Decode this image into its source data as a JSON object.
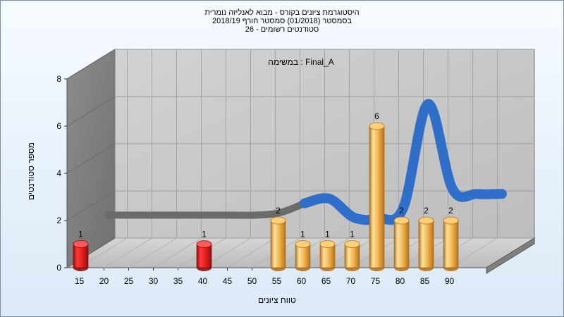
{
  "chart_data": {
    "type": "bar",
    "title_lines": [
      "היסטוגרמת ציונים בקורס - מבוא לאנליזה נומרית",
      "בסמסטר  (01/2018)  סמסטר חורף 2018/19",
      "סטודנטים רשומים - 26"
    ],
    "annotation": "במשימה : Final_A",
    "xlabel": "טווח ציונים",
    "ylabel": "מספר סטודנטים",
    "x_ticks": [
      "15",
      "20",
      "25",
      "30",
      "35",
      "40",
      "45",
      "50",
      "55",
      "60",
      "65",
      "70",
      "75",
      "80",
      "85",
      "90"
    ],
    "y_ticks": [
      "0",
      "2",
      "4",
      "6",
      "8"
    ],
    "ylim": [
      0,
      8
    ],
    "bars": [
      {
        "x": 15,
        "value": 1,
        "color": "#e11d1d"
      },
      {
        "x": 40,
        "value": 1,
        "color": "#e11d1d"
      },
      {
        "x": 55,
        "value": 2,
        "color": "#f2b24b"
      },
      {
        "x": 60,
        "value": 1,
        "color": "#f2b24b"
      },
      {
        "x": 65,
        "value": 1,
        "color": "#f2b24b"
      },
      {
        "x": 70,
        "value": 1,
        "color": "#f2b24b"
      },
      {
        "x": 75,
        "value": 6,
        "color": "#f2b24b"
      },
      {
        "x": 80,
        "value": 2,
        "color": "#f2b24b"
      },
      {
        "x": 85,
        "value": 2,
        "color": "#f2b24b"
      },
      {
        "x": 90,
        "value": 2,
        "color": "#f2b24b"
      }
    ],
    "curve": [
      {
        "x": 15,
        "y": 1.5
      },
      {
        "x": 20,
        "y": 1.5
      },
      {
        "x": 25,
        "y": 1.5
      },
      {
        "x": 30,
        "y": 1.5
      },
      {
        "x": 35,
        "y": 1.5
      },
      {
        "x": 40,
        "y": 1.5
      },
      {
        "x": 45,
        "y": 1.5
      },
      {
        "x": 50,
        "y": 1.6
      },
      {
        "x": 55,
        "y": 2.0
      },
      {
        "x": 60,
        "y": 2.2
      },
      {
        "x": 65,
        "y": 1.4
      },
      {
        "x": 70,
        "y": 1.35
      },
      {
        "x": 75,
        "y": 1.8
      },
      {
        "x": 80,
        "y": 6.2
      },
      {
        "x": 85,
        "y": 2.6
      },
      {
        "x": 90,
        "y": 2.4
      },
      {
        "x": 95,
        "y": 2.4
      }
    ],
    "colors": {
      "wall": "#c7c7c7",
      "side_wall": "#7f7f7f",
      "floor": "#cfcfcf",
      "curve": "#2f6fca",
      "curve_flat": "#6b6b6b"
    }
  }
}
